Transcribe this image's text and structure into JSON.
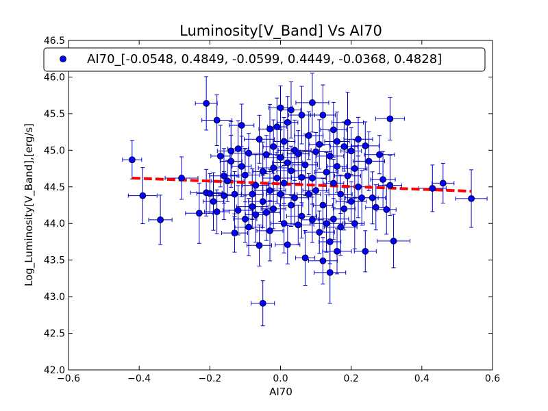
{
  "chart_data": {
    "type": "scatter",
    "title": "Luminosity[V_Band] Vs AI70",
    "xlabel": "AI70",
    "ylabel": "Log_Luminosity[V_Band],[erg/s]",
    "xlim": [
      -0.6,
      0.6
    ],
    "ylim": [
      42.0,
      46.5
    ],
    "xticks": [
      "−0.6",
      "−0.4",
      "−0.2",
      "0.0",
      "0.2",
      "0.4",
      "0.6"
    ],
    "yticks": [
      "42.0",
      "42.5",
      "43.0",
      "43.5",
      "44.0",
      "44.5",
      "45.0",
      "45.5",
      "46.0",
      "46.5"
    ],
    "xtick_values": [
      -0.6,
      -0.4,
      -0.2,
      0.0,
      0.2,
      0.4,
      0.6
    ],
    "ytick_values": [
      42.0,
      42.5,
      43.0,
      43.5,
      44.0,
      44.5,
      45.0,
      45.5,
      46.0,
      46.5
    ],
    "grid": false,
    "legend_position": "top",
    "colors": {
      "points": "#0000ff",
      "errorbars": "#0000cc",
      "fit": "#ff0000"
    },
    "series": [
      {
        "name": "AI70_[-0.0548, 0.4849, -0.0599, 0.4449, -0.0368, 0.4828]",
        "marker": "circle",
        "points": [
          [
            -0.42,
            44.87
          ],
          [
            -0.39,
            44.38
          ],
          [
            -0.34,
            44.05
          ],
          [
            -0.28,
            44.62
          ],
          [
            -0.23,
            44.14
          ],
          [
            -0.21,
            45.64
          ],
          [
            -0.21,
            44.42
          ],
          [
            -0.2,
            44.41
          ],
          [
            -0.19,
            44.3
          ],
          [
            -0.18,
            45.41
          ],
          [
            -0.18,
            44.16
          ],
          [
            -0.17,
            44.92
          ],
          [
            -0.16,
            44.65
          ],
          [
            -0.16,
            44.38
          ],
          [
            -0.15,
            44.58
          ],
          [
            -0.14,
            44.99
          ],
          [
            -0.14,
            44.85
          ],
          [
            -0.13,
            44.4
          ],
          [
            -0.13,
            43.87
          ],
          [
            -0.12,
            45.02
          ],
          [
            -0.12,
            44.18
          ],
          [
            -0.11,
            45.34
          ],
          [
            -0.11,
            44.78
          ],
          [
            -0.1,
            44.66
          ],
          [
            -0.1,
            44.06
          ],
          [
            -0.09,
            44.96
          ],
          [
            -0.09,
            43.95
          ],
          [
            -0.08,
            44.4
          ],
          [
            -0.08,
            44.23
          ],
          [
            -0.07,
            44.52
          ],
          [
            -0.07,
            44.12
          ],
          [
            -0.06,
            45.15
          ],
          [
            -0.06,
            43.7
          ],
          [
            -0.05,
            44.71
          ],
          [
            -0.05,
            44.3
          ],
          [
            -0.05,
            42.91
          ],
          [
            -0.04,
            44.94
          ],
          [
            -0.04,
            44.15
          ],
          [
            -0.03,
            45.29
          ],
          [
            -0.03,
            44.45
          ],
          [
            -0.03,
            43.9
          ],
          [
            -0.02,
            45.05
          ],
          [
            -0.02,
            44.76
          ],
          [
            -0.02,
            44.2
          ],
          [
            -0.01,
            45.32
          ],
          [
            -0.01,
            44.62
          ],
          [
            0.0,
            45.58
          ],
          [
            0.0,
            44.9
          ],
          [
            0.0,
            44.4
          ],
          [
            0.01,
            45.12
          ],
          [
            0.01,
            44.55
          ],
          [
            0.01,
            44.0
          ],
          [
            0.02,
            45.38
          ],
          [
            0.02,
            44.83
          ],
          [
            0.02,
            43.71
          ],
          [
            0.03,
            45.55
          ],
          [
            0.03,
            44.72
          ],
          [
            0.03,
            44.25
          ],
          [
            0.04,
            45.0
          ],
          [
            0.04,
            44.35
          ],
          [
            0.05,
            44.95
          ],
          [
            0.05,
            43.98
          ],
          [
            0.06,
            45.48
          ],
          [
            0.06,
            44.63
          ],
          [
            0.06,
            44.1
          ],
          [
            0.07,
            44.8
          ],
          [
            0.07,
            43.53
          ],
          [
            0.08,
            45.2
          ],
          [
            0.08,
            44.4
          ],
          [
            0.09,
            45.65
          ],
          [
            0.09,
            44.62
          ],
          [
            0.09,
            44.05
          ],
          [
            0.1,
            44.98
          ],
          [
            0.1,
            44.45
          ],
          [
            0.11,
            45.08
          ],
          [
            0.11,
            43.88
          ],
          [
            0.12,
            45.48
          ],
          [
            0.12,
            44.25
          ],
          [
            0.12,
            43.49
          ],
          [
            0.13,
            44.7
          ],
          [
            0.13,
            44.0
          ],
          [
            0.14,
            44.92
          ],
          [
            0.14,
            43.75
          ],
          [
            0.14,
            43.33
          ],
          [
            0.15,
            45.28
          ],
          [
            0.15,
            44.55
          ],
          [
            0.15,
            44.06
          ],
          [
            0.16,
            45.12
          ],
          [
            0.16,
            44.78
          ],
          [
            0.16,
            43.62
          ],
          [
            0.17,
            44.4
          ],
          [
            0.17,
            43.95
          ],
          [
            0.18,
            45.05
          ],
          [
            0.18,
            44.2
          ],
          [
            0.19,
            45.38
          ],
          [
            0.19,
            44.65
          ],
          [
            0.2,
            44.99
          ],
          [
            0.2,
            44.3
          ],
          [
            0.21,
            44.75
          ],
          [
            0.21,
            44.0
          ],
          [
            0.22,
            45.15
          ],
          [
            0.22,
            44.5
          ],
          [
            0.23,
            44.35
          ],
          [
            0.24,
            45.06
          ],
          [
            0.24,
            43.62
          ],
          [
            0.25,
            44.85
          ],
          [
            0.26,
            44.35
          ],
          [
            0.27,
            44.22
          ],
          [
            0.28,
            44.94
          ],
          [
            0.29,
            44.6
          ],
          [
            0.3,
            44.19
          ],
          [
            0.31,
            45.43
          ],
          [
            0.31,
            44.52
          ],
          [
            0.32,
            43.76
          ],
          [
            0.43,
            44.48
          ],
          [
            0.46,
            44.55
          ],
          [
            0.54,
            44.34
          ]
        ]
      }
    ],
    "fit_line": {
      "x": [
        -0.42,
        0.54
      ],
      "y": [
        44.62,
        44.44
      ]
    }
  }
}
